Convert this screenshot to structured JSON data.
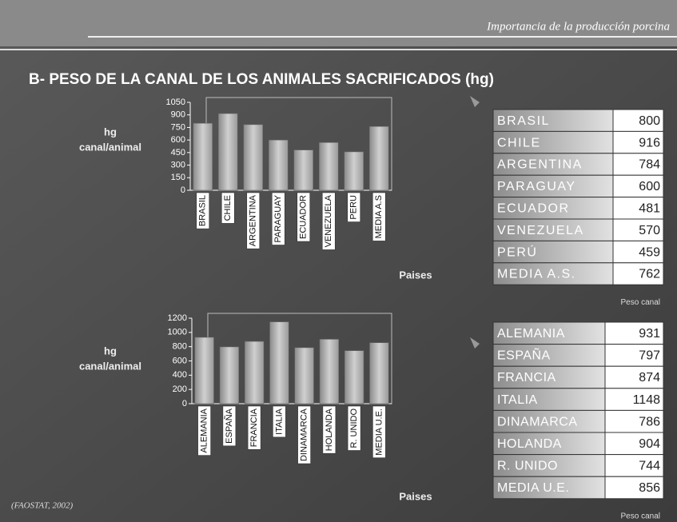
{
  "header": "Importancia de la producción porcina",
  "title": "B- PESO DE LA CANAL DE LOS ANIMALES SACRIFICADOS (hg)",
  "footer": "(FAOSTAT, 2002)",
  "chart_data": [
    {
      "type": "bar",
      "y_label": [
        "hg",
        "canal/animal"
      ],
      "x_label": "Paises",
      "categories": [
        "BRASIL",
        "CHILE",
        "ARGENTINA",
        "PARAGUAY",
        "ECUADOR",
        "VENEZUELA",
        "PERU",
        "MEDIA A.S"
      ],
      "values": [
        800,
        916,
        784,
        600,
        481,
        570,
        459,
        762
      ],
      "color": "#b4b4b4",
      "ylim": [
        0,
        1050
      ],
      "yticks": [
        0,
        150,
        300,
        450,
        600,
        750,
        900,
        1050
      ]
    },
    {
      "type": "bar",
      "y_label": [
        "hg",
        "canal/animal"
      ],
      "x_label": "Paises",
      "categories": [
        "ALEMANIA",
        "ESPAÑA",
        "FRANCIA",
        "ITALIA",
        "DINAMARCA",
        "HOLANDA",
        "R. UNIDO",
        "MEDIA U.E."
      ],
      "values": [
        931,
        797,
        874,
        1148,
        786,
        904,
        744,
        856
      ],
      "color": "#b4b4b4",
      "ylim": [
        0,
        1200
      ],
      "yticks": [
        0,
        200,
        400,
        600,
        800,
        1000,
        1200
      ]
    }
  ],
  "tables": [
    {
      "caption": "Peso canal",
      "rows": [
        [
          "BRASIL",
          "800"
        ],
        [
          "CHILE",
          "916"
        ],
        [
          "ARGENTINA",
          "784"
        ],
        [
          "PARAGUAY",
          "600"
        ],
        [
          "ECUADOR",
          "481"
        ],
        [
          "VENEZUELA",
          "570"
        ],
        [
          "PERÚ",
          "459"
        ],
        [
          "MEDIA A.S.",
          "762"
        ]
      ]
    },
    {
      "caption": "Peso canal",
      "rows": [
        [
          "ALEMANIA",
          "931"
        ],
        [
          "ESPAÑA",
          "797"
        ],
        [
          "FRANCIA",
          "874"
        ],
        [
          "ITALIA",
          "1148"
        ],
        [
          "DINAMARCA",
          "786"
        ],
        [
          "HOLANDA",
          "904"
        ],
        [
          "R. UNIDO",
          "744"
        ],
        [
          "MEDIA U.E.",
          "856"
        ]
      ]
    }
  ]
}
